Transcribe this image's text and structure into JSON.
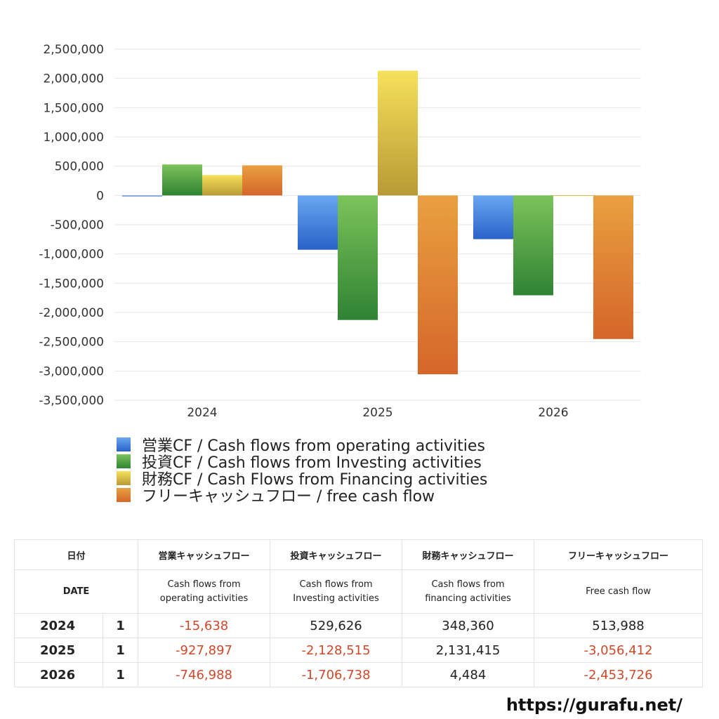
{
  "chart_data": {
    "type": "bar",
    "categories": [
      "2024",
      "2025",
      "2026"
    ],
    "series": [
      {
        "name": "営業CF / Cash flows from operating activities",
        "values": [
          -15638,
          -927897,
          -746988
        ],
        "color": "#3f7fdc"
      },
      {
        "name": "投資CF / Cash flows from Investing activities",
        "values": [
          529626,
          -2128515,
          -1706738
        ],
        "color": "#4c9e3f"
      },
      {
        "name": "財務CF / Cash Flows from Financing activities",
        "values": [
          348360,
          2131415,
          4484
        ],
        "color": "#e2c43a"
      },
      {
        "name": "フリーキャッシュフロー / free cash flow",
        "values": [
          513988,
          -3056412,
          -2453726
        ],
        "color": "#e07a30"
      }
    ],
    "ylim": [
      -3500000,
      2500000
    ],
    "yticks": [
      2500000,
      2000000,
      1500000,
      1000000,
      500000,
      0,
      -500000,
      -1000000,
      -1500000,
      -2000000,
      -2500000,
      -3000000,
      -3500000
    ],
    "grid": true,
    "legend_position": "bottom"
  },
  "table": {
    "header_jp": [
      "日付",
      "営業キャッシュフロー",
      "投資キャッシュフロー",
      "財務キャッシュフロー",
      "フリーキャッシュフロー"
    ],
    "header_en": [
      "DATE",
      "Cash flows from\noperating activities",
      "Cash flows from\nInvesting activities",
      "Cash flows from\nfinancing activities",
      "Free cash flow"
    ],
    "rows": [
      {
        "year": "2024",
        "q": "1",
        "cells": [
          "-15,638",
          "529,626",
          "348,360",
          "513,988"
        ]
      },
      {
        "year": "2025",
        "q": "1",
        "cells": [
          "-927,897",
          "-2,128,515",
          "2,131,415",
          "-3,056,412"
        ]
      },
      {
        "year": "2026",
        "q": "1",
        "cells": [
          "-746,988",
          "-1,706,738",
          "4,484",
          "-2,453,726"
        ]
      }
    ]
  },
  "footer_url": "https://gurafu.net/"
}
